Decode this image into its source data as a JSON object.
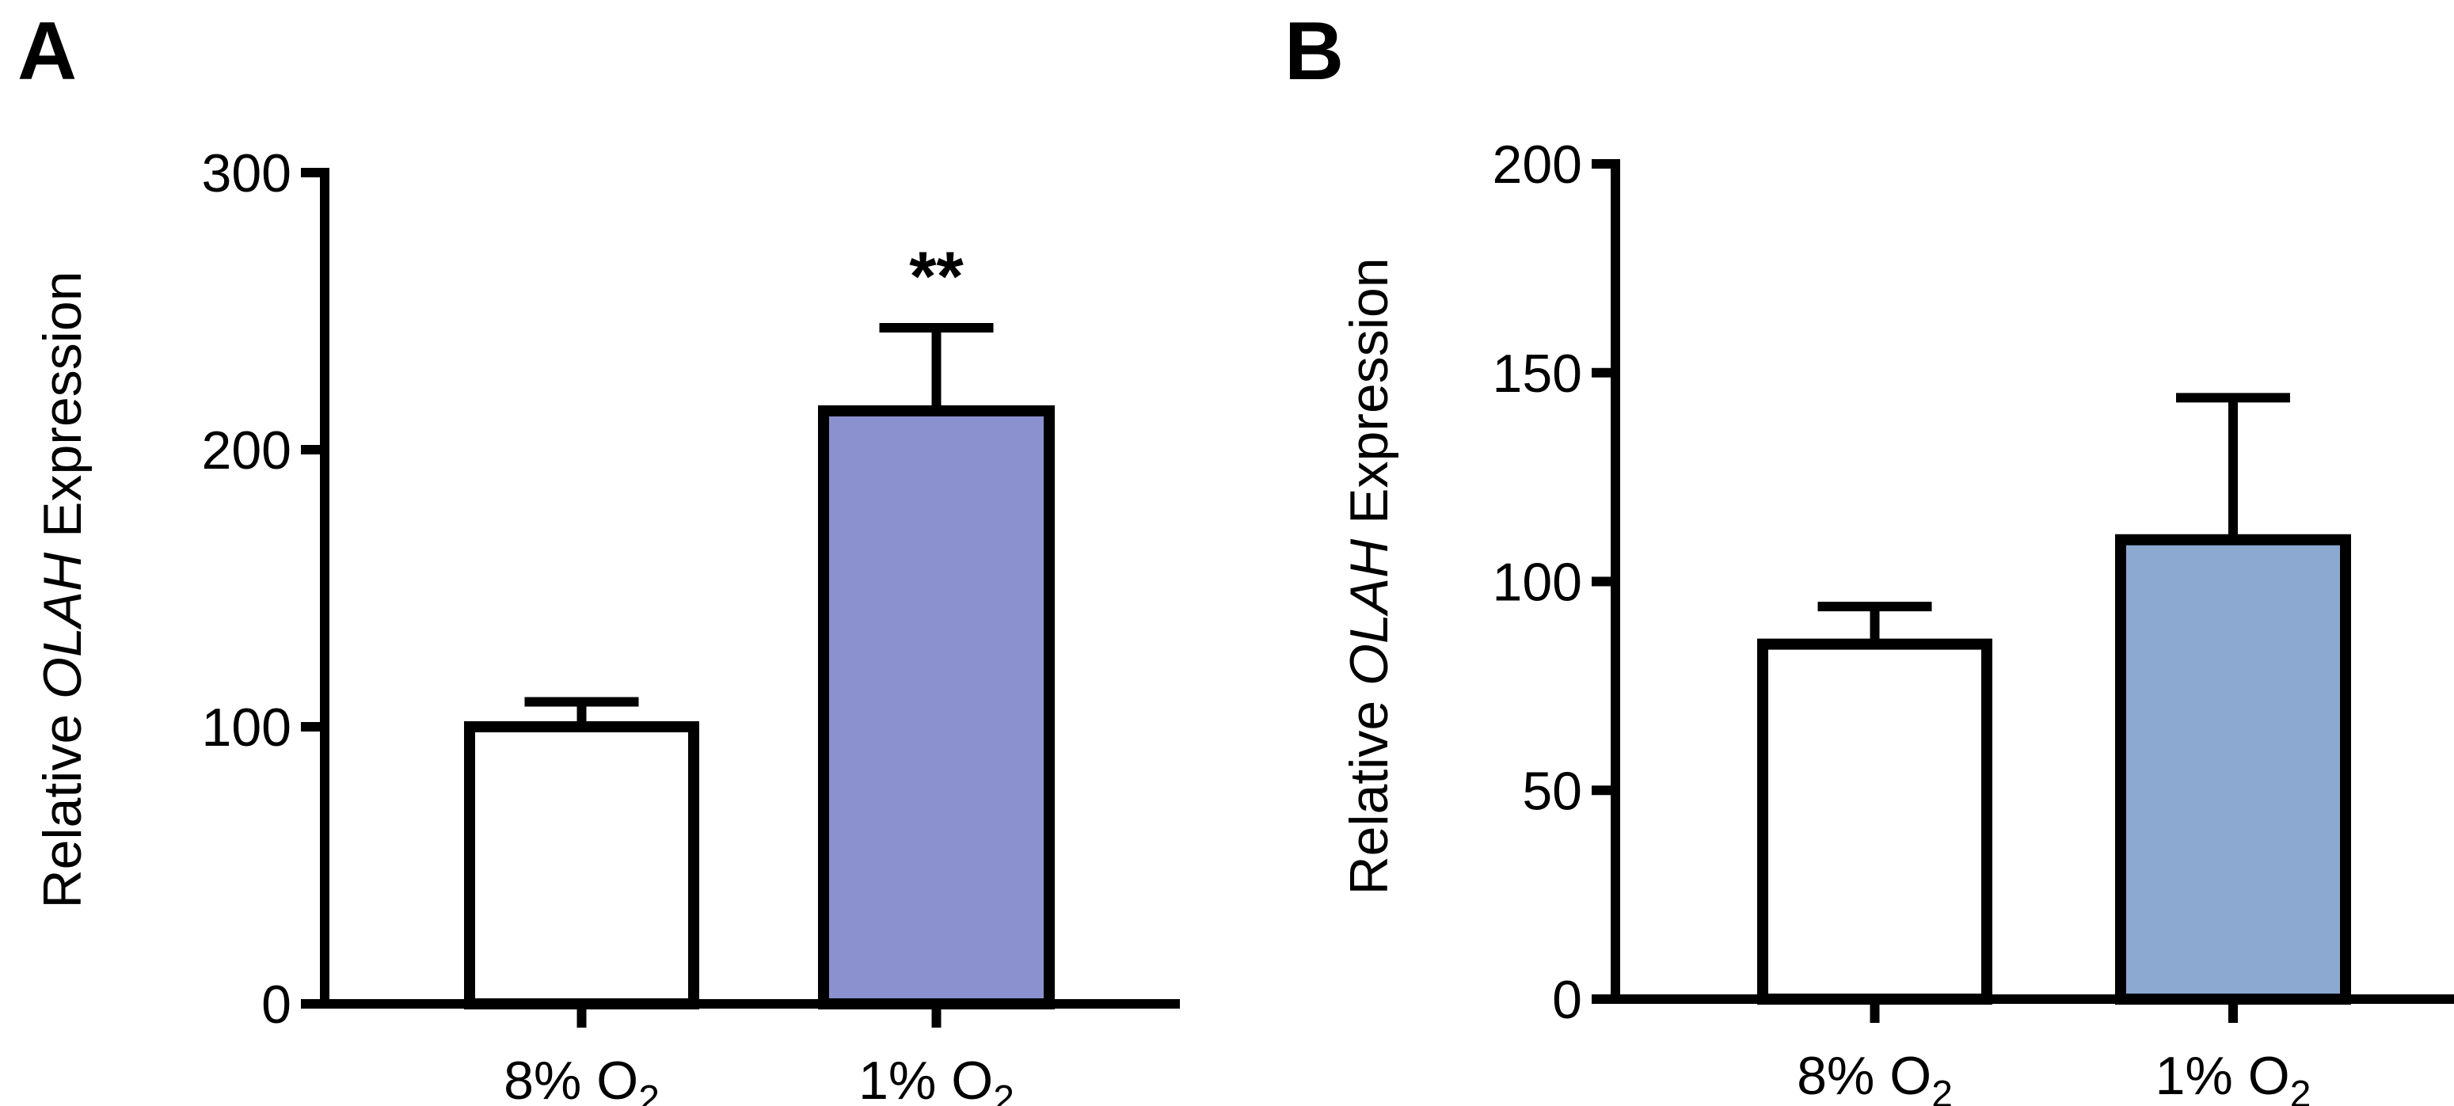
{
  "chart_data": [
    {
      "panel": "A",
      "type": "bar",
      "ylabel": {
        "prefix": "Relative ",
        "gene": "OLAH",
        "suffix": " Expression"
      },
      "ylim": [
        0,
        300
      ],
      "yticks": [
        0,
        100,
        200,
        300
      ],
      "categories": [
        {
          "main": "8% O",
          "sub": "2"
        },
        {
          "main": "1% O",
          "sub": "2"
        }
      ],
      "values": [
        100,
        214
      ],
      "errors": [
        9,
        30
      ],
      "colors": [
        "#ffffff",
        "#8b91ce"
      ],
      "significance": [
        "",
        "**"
      ]
    },
    {
      "panel": "B",
      "type": "bar",
      "ylabel": {
        "prefix": "Relative ",
        "gene": "OLAH",
        "suffix": " Expression"
      },
      "ylim": [
        0,
        200
      ],
      "yticks": [
        0,
        50,
        100,
        150,
        200
      ],
      "categories": [
        {
          "main": "8% O",
          "sub": "2"
        },
        {
          "main": "1% O",
          "sub": "2"
        }
      ],
      "values": [
        85,
        110
      ],
      "errors": [
        9,
        34
      ],
      "colors": [
        "#ffffff",
        "#8caad1"
      ],
      "significance": [
        "",
        ""
      ]
    }
  ]
}
